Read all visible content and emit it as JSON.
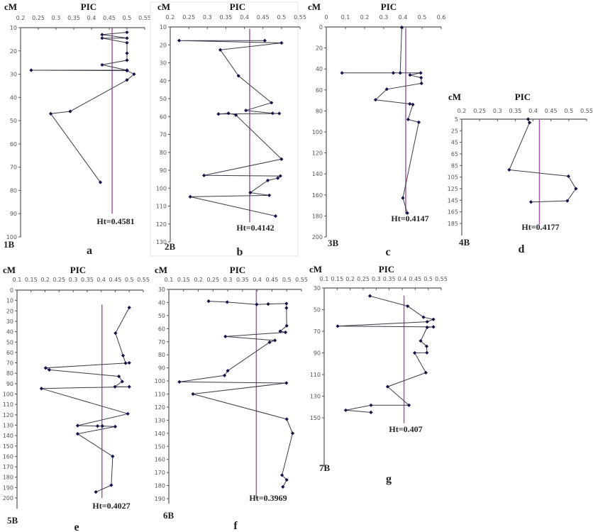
{
  "colors": {
    "series_line": "#3a3a4a",
    "marker": "#12124a",
    "ht_line": "#a65aa6",
    "axis": "#555555"
  },
  "chart_data": [
    {
      "type": "line",
      "panel": "a",
      "chromosome": "1B",
      "xlabel": "PIC",
      "ylabel": "cM",
      "annotation": "Ht=0.4581",
      "ht": 0.4581,
      "xlim": [
        0.2,
        0.55
      ],
      "ylim": [
        10,
        100
      ],
      "y_inverted": true,
      "x_axis": "top",
      "grid": false,
      "xticks": [
        "0.2",
        "0.25",
        "0.3",
        "0.35",
        "0.4",
        "0.45",
        "0.5",
        "0.55"
      ],
      "yticks": [
        "10",
        "20",
        "30",
        "40",
        "50",
        "60",
        "70",
        "80",
        "90",
        "100"
      ],
      "x": [
        0.5,
        0.43,
        0.5,
        0.43,
        0.5,
        0.5,
        0.5,
        0.43,
        0.5,
        0.23,
        0.5,
        0.52,
        0.5,
        0.34,
        0.285,
        0.425
      ],
      "y": [
        12,
        13,
        14.5,
        14.5,
        16.5,
        21,
        24,
        26,
        28.3,
        28.3,
        28.5,
        30,
        32.5,
        46,
        47,
        76.5
      ]
    },
    {
      "type": "line",
      "panel": "b",
      "chromosome": "2B",
      "xlabel": "PIC",
      "ylabel": "cM",
      "annotation": "Ht=0.4142",
      "ht": 0.4142,
      "xlim": [
        0.2,
        0.55
      ],
      "ylim": [
        10,
        130
      ],
      "y_inverted": true,
      "x_axis": "top",
      "grid": false,
      "xticks": [
        "0.2",
        "0.25",
        "0.3",
        "0.35",
        "0.4",
        "0.45",
        "0.5",
        "0.55"
      ],
      "yticks": [
        "10",
        "20",
        "30",
        "40",
        "50",
        "60",
        "70",
        "80",
        "90",
        "100",
        "110",
        "120",
        "130"
      ],
      "x": [
        0.455,
        0.224,
        0.5,
        0.335,
        0.384,
        0.473,
        0.404,
        0.476,
        0.494,
        0.33,
        0.357,
        0.377,
        0.5,
        0.291,
        0.497,
        0.49,
        0.463,
        0.416,
        0.467,
        0.254,
        0.484
      ],
      "y": [
        17.6,
        17.6,
        18.9,
        22.8,
        37.3,
        52.3,
        56.6,
        58.2,
        58.3,
        58.6,
        58.2,
        59.2,
        83.8,
        92.9,
        93.2,
        94.4,
        95.7,
        102.5,
        104,
        104.8,
        115.6
      ]
    },
    {
      "type": "line",
      "panel": "c",
      "chromosome": "3B",
      "xlabel": "PIC",
      "ylabel": "cM",
      "annotation": "Ht=0.4147",
      "ht": 0.4147,
      "xlim": [
        0,
        0.6
      ],
      "ylim": [
        0,
        200
      ],
      "y_inverted": true,
      "x_axis": "top",
      "grid": false,
      "xticks": [
        "0",
        "0.1",
        "0.2",
        "0.3",
        "0.4",
        "0.5",
        "0.6"
      ],
      "yticks": [
        "0",
        "20",
        "40",
        "60",
        "80",
        "100",
        "120",
        "140",
        "160",
        "180",
        "200"
      ],
      "x": [
        0.394,
        0.386,
        0.35,
        0.082,
        0.493,
        0.437,
        0.495,
        0.497,
        0.316,
        0.257,
        0.436,
        0.452,
        0.427,
        0.483,
        0.4,
        0.423
      ],
      "y": [
        0.4,
        43.8,
        43.8,
        43.8,
        43.8,
        45.8,
        48.3,
        53.7,
        59.3,
        69.4,
        73.3,
        73.9,
        88.1,
        90.8,
        162.9,
        177.3
      ]
    },
    {
      "type": "line",
      "panel": "d",
      "chromosome": "4B",
      "xlabel": "PIC",
      "ylabel": "cM",
      "annotation": "Ht=0.4177",
      "ht": 0.4177,
      "xlim": [
        0.2,
        0.55
      ],
      "ylim": [
        5,
        185
      ],
      "y_inverted": true,
      "x_axis": "top",
      "grid": false,
      "xticks": [
        "0.2",
        "0.25",
        "0.3",
        "0.35",
        "0.4",
        "0.45",
        "0.5",
        "0.55"
      ],
      "yticks": [
        "5",
        "25",
        "45",
        "65",
        "85",
        "105",
        "125",
        "145",
        "165",
        "185"
      ],
      "x": [
        0.386,
        0.39,
        0.333,
        0.499,
        0.52,
        0.496,
        0.394
      ],
      "y": [
        5,
        11,
        92.5,
        103.5,
        125,
        146,
        148
      ]
    },
    {
      "type": "line",
      "panel": "e",
      "chromosome": "5B",
      "xlabel": "PIC",
      "ylabel": "cM",
      "annotation": "Ht=0.4027",
      "ht": 0.4027,
      "xlim": [
        0.1,
        0.55
      ],
      "ylim": [
        0,
        200
      ],
      "y_inverted": true,
      "x_axis": "top",
      "grid": false,
      "xticks": [
        "0.1",
        "0.15",
        "0.2",
        "0.25",
        "0.3",
        "0.35",
        "0.4",
        "0.45",
        "0.5",
        "0.55"
      ],
      "yticks": [
        "0",
        "10",
        "20",
        "30",
        "40",
        "50",
        "60",
        "70",
        "80",
        "90",
        "100",
        "110",
        "120",
        "130",
        "140",
        "150",
        "160",
        "170",
        "180",
        "190",
        "200"
      ],
      "x": [
        0.5,
        0.451,
        0.478,
        0.487,
        0.5,
        0.202,
        0.215,
        0.463,
        0.475,
        0.449,
        0.5,
        0.187,
        0.495,
        0.316,
        0.387,
        0.404,
        0.45,
        0.316,
        0.441,
        0.436,
        0.381
      ],
      "y": [
        16.8,
        41.4,
        63,
        70.3,
        70,
        74.9,
        76.7,
        83,
        88,
        93,
        93,
        94.7,
        119,
        130.4,
        130.8,
        130.8,
        131.3,
        138.3,
        160,
        187.7,
        194.3
      ]
    },
    {
      "type": "line",
      "panel": "f",
      "chromosome": "6B",
      "xlabel": "PIC",
      "ylabel": "cM",
      "annotation": "Ht=0.3969",
      "ht": 0.3969,
      "xlim": [
        0.1,
        0.55
      ],
      "ylim": [
        30,
        190
      ],
      "y_inverted": true,
      "x_axis": "top",
      "grid": false,
      "xticks": [
        "0.1",
        "0.15",
        "0.2",
        "0.25",
        "0.3",
        "0.35",
        "0.4",
        "0.45",
        "0.5",
        "0.55"
      ],
      "yticks": [
        "30",
        "40",
        "50",
        "60",
        "70",
        "80",
        "90",
        "100",
        "110",
        "120",
        "130",
        "140",
        "150",
        "160",
        "170",
        "180",
        "190"
      ],
      "x": [
        0.235,
        0.298,
        0.398,
        0.437,
        0.499,
        0.499,
        0.5,
        0.478,
        0.496,
        0.292,
        0.46,
        0.442,
        0.3,
        0.289,
        0.136,
        0.499,
        0.182,
        0.5,
        0.52,
        0.484,
        0.5,
        0.487
      ],
      "y": [
        39,
        39.7,
        41.5,
        41.2,
        40.8,
        44.2,
        57.8,
        62,
        62.8,
        66,
        69,
        70.4,
        92.2,
        95.8,
        100.7,
        101.6,
        110,
        129.2,
        140,
        172,
        175.6,
        181
      ]
    },
    {
      "type": "line",
      "panel": "g",
      "chromosome": "7B",
      "xlabel": "PIC",
      "ylabel": "cM",
      "annotation": "Ht=0.407",
      "ht": 0.407,
      "xlim": [
        0.1,
        0.55
      ],
      "ylim": [
        30,
        150
      ],
      "y_inverted": true,
      "x_axis": "top",
      "grid": false,
      "xticks": [
        "0.1",
        "0.15",
        "0.2",
        "0.25",
        "0.3",
        "0.35",
        "0.4",
        "0.45",
        "0.5",
        "0.55"
      ],
      "yticks": [
        "30",
        "50",
        "70",
        "90",
        "110",
        "130",
        "150"
      ],
      "x": [
        0.276,
        0.421,
        0.482,
        0.52,
        0.496,
        0.152,
        0.52,
        0.496,
        0.471,
        0.494,
        0.495,
        0.448,
        0.491,
        0.344,
        0.426,
        0.28,
        0.183,
        0.28
      ],
      "y": [
        37.4,
        46.8,
        57,
        59,
        61.2,
        65.3,
        66,
        66.4,
        78.9,
        83.9,
        89.8,
        90,
        108.3,
        121.2,
        138.4,
        138.4,
        143,
        145
      ]
    }
  ]
}
